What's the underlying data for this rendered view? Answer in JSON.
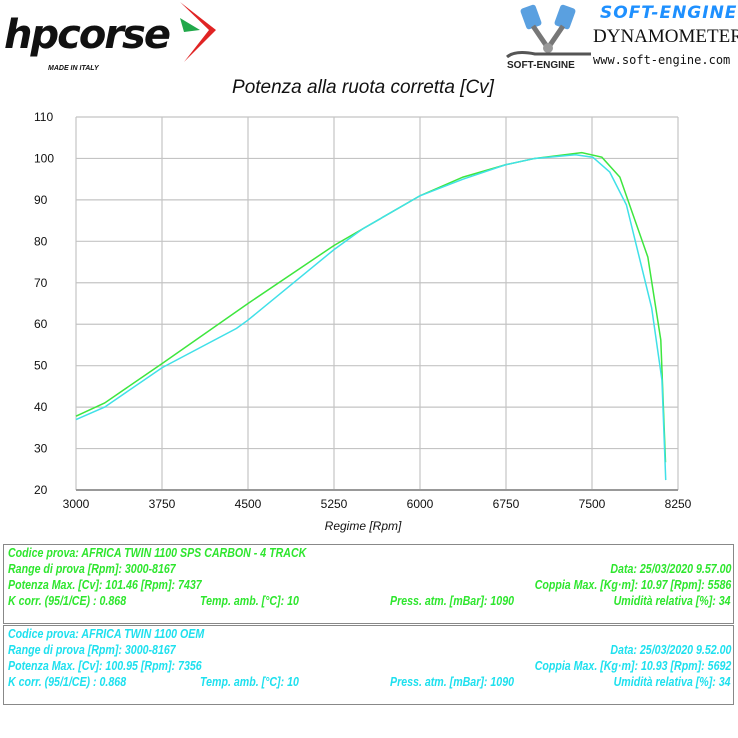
{
  "header": {
    "left_logo": {
      "brand": "hpcorse",
      "tagline": "MADE IN ITALY"
    },
    "right_logo": {
      "brand": "SOFT-ENGINE",
      "subtitle": "DYNAMOMETERS",
      "url": "www.soft-engine.com",
      "mark": "SOFT-ENGINE"
    }
  },
  "chart_data": {
    "type": "line",
    "title": "Potenza alla ruota corretta [Cv]",
    "xlabel": "Regime [Rpm]",
    "ylabel": "",
    "xlim": [
      3000,
      8250
    ],
    "ylim": [
      20,
      110
    ],
    "xticks": [
      3000,
      3750,
      4500,
      5250,
      6000,
      6750,
      7500,
      8250
    ],
    "yticks": [
      20,
      30,
      40,
      50,
      60,
      70,
      80,
      90,
      100,
      110
    ],
    "grid": true,
    "series": [
      {
        "name": "SPS CARBON - 4 TRACK",
        "color": "#3ee63e",
        "x": [
          3000,
          3250,
          3750,
          4500,
          5250,
          5500,
          6000,
          6375,
          6750,
          7000,
          7411,
          7586,
          7743,
          7987,
          8100,
          8141
        ],
        "y": [
          37.8,
          41,
          50.5,
          65,
          79,
          83,
          91,
          95.5,
          98.5,
          100,
          101.4,
          100.3,
          95.5,
          76.2,
          56.2,
          26.7
        ]
      },
      {
        "name": "OEM",
        "color": "#40e0e8",
        "x": [
          3000,
          3250,
          3750,
          4400,
          4500,
          5250,
          5500,
          6000,
          6375,
          6750,
          7000,
          7356,
          7507,
          7655,
          7800,
          8020,
          8110,
          8143
        ],
        "y": [
          37,
          40,
          49.5,
          59,
          61,
          78,
          83,
          91,
          95,
          98.5,
          100,
          100.9,
          100.3,
          96.7,
          88.8,
          64,
          46.5,
          22.4
        ]
      }
    ]
  },
  "tests": [
    {
      "color": "#2ee62e",
      "code": "Codice prova: AFRICA TWIN 1100   SPS CARBON  -  4 TRACK",
      "range": "Range di prova [Rpm]: 3000-8167",
      "date": "Data: 25/03/2020   9.57.00",
      "power": "Potenza Max. [Cv]: 101.46   [Rpm]: 7437",
      "torque": "Coppia Max. [Kg·m]: 10.97   [Rpm]: 5586",
      "kcorr": "K corr. (95/1/CE) : 0.868",
      "temp": "Temp. amb. [°C]: 10",
      "press": "Press. atm. [mBar]: 1090",
      "hum": "Umidità relativa [%]: 34"
    },
    {
      "color": "#1ee0ee",
      "code": "Codice prova: AFRICA TWIN 1100   OEM",
      "range": "Range di prova [Rpm]: 3000-8167",
      "date": "Data: 25/03/2020   9.52.00",
      "power": "Potenza Max. [Cv]: 100.95   [Rpm]: 7356",
      "torque": "Coppia Max. [Kg·m]: 10.93   [Rpm]: 5692",
      "kcorr": "K corr. (95/1/CE) : 0.868",
      "temp": "Temp. amb. [°C]: 10",
      "press": "Press. atm. [mBar]: 1090",
      "hum": "Umidità relativa [%]: 34"
    }
  ]
}
